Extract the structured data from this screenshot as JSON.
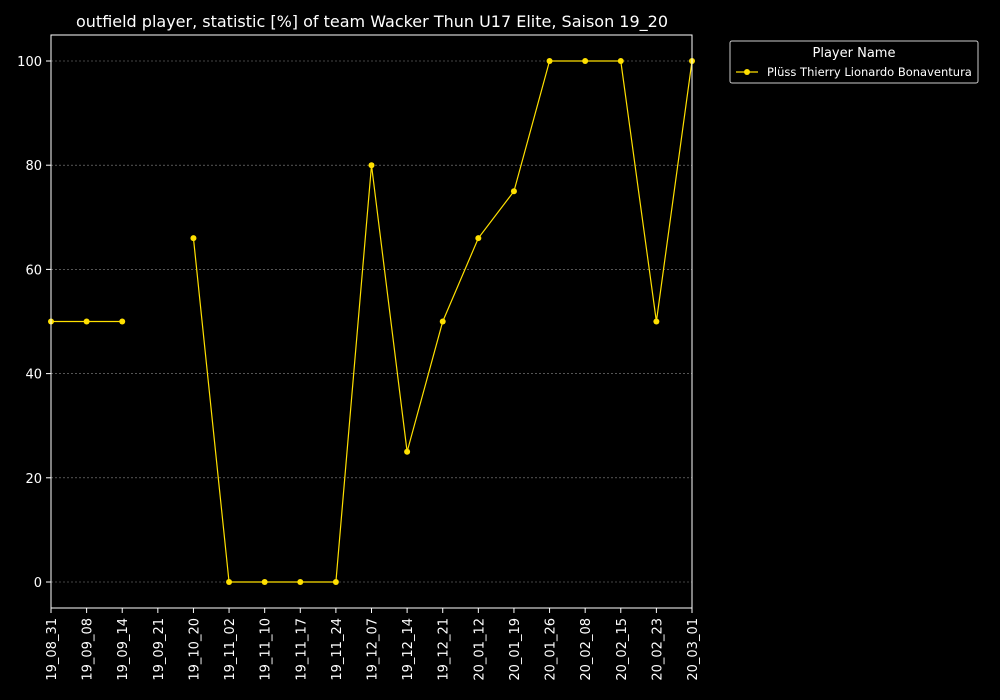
{
  "chart_data": {
    "type": "line",
    "title": "outfield player, statistic [%] of team Wacker Thun U17 Elite, Saison 19_20",
    "xlabel": "",
    "ylabel": "",
    "categories": [
      "19_08_31",
      "19_09_08",
      "19_09_14",
      "19_09_21",
      "19_10_20",
      "19_11_02",
      "19_11_10",
      "19_11_17",
      "19_11_24",
      "19_12_07",
      "19_12_14",
      "19_12_21",
      "20_01_12",
      "20_01_19",
      "20_01_26",
      "20_02_08",
      "20_02_15",
      "20_02_23",
      "20_03_01"
    ],
    "series": [
      {
        "name": "Plüss Thierry Lionardo Bonaventura",
        "color": "#ffe000",
        "values": [
          50,
          50,
          50,
          null,
          66,
          0,
          0,
          0,
          0,
          80,
          25,
          50,
          66,
          75,
          100,
          100,
          100,
          50,
          100
        ]
      }
    ],
    "ylim": [
      -5,
      105
    ],
    "yticks": [
      0,
      20,
      40,
      60,
      80,
      100
    ],
    "grid": true,
    "legend": {
      "title": "Player Name",
      "placement": "outside-top-right"
    },
    "colors": {
      "background": "#000000",
      "axes": "#ffffff",
      "grid": "#888888",
      "text": "#ffffff"
    }
  }
}
